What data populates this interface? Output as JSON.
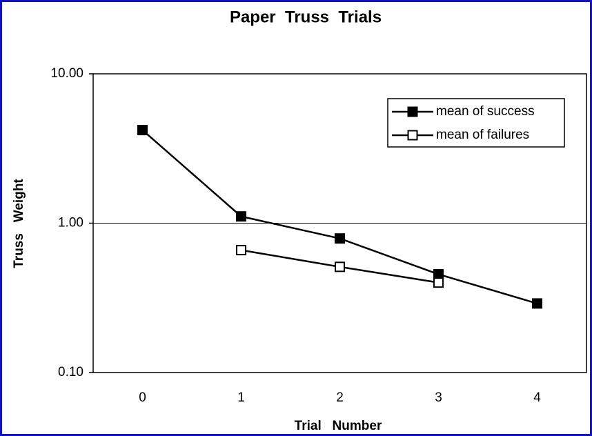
{
  "chart_data": {
    "type": "line",
    "title": "Paper  Truss  Trials",
    "x_label": "Trial   Number",
    "y_label": "Truss   Weight",
    "categories": [
      "0",
      "1",
      "2",
      "3",
      "4"
    ],
    "series": [
      {
        "name": "mean of success",
        "color": "#000000",
        "marker": "filled-square",
        "values": [
          4.2,
          1.11,
          0.79,
          0.455,
          0.29
        ]
      },
      {
        "name": "mean of failures",
        "color": "#000000",
        "marker": "open-square",
        "values": [
          null,
          0.66,
          0.51,
          0.4,
          null
        ]
      }
    ],
    "log_y": true,
    "ylim": [
      0.1,
      10
    ],
    "yticks": [
      {
        "value": 10,
        "label": "10.00"
      },
      {
        "value": 1,
        "label": "1.00"
      },
      {
        "value": 0.1,
        "label": "0.10"
      }
    ],
    "grid": true,
    "legend": "upper right"
  }
}
